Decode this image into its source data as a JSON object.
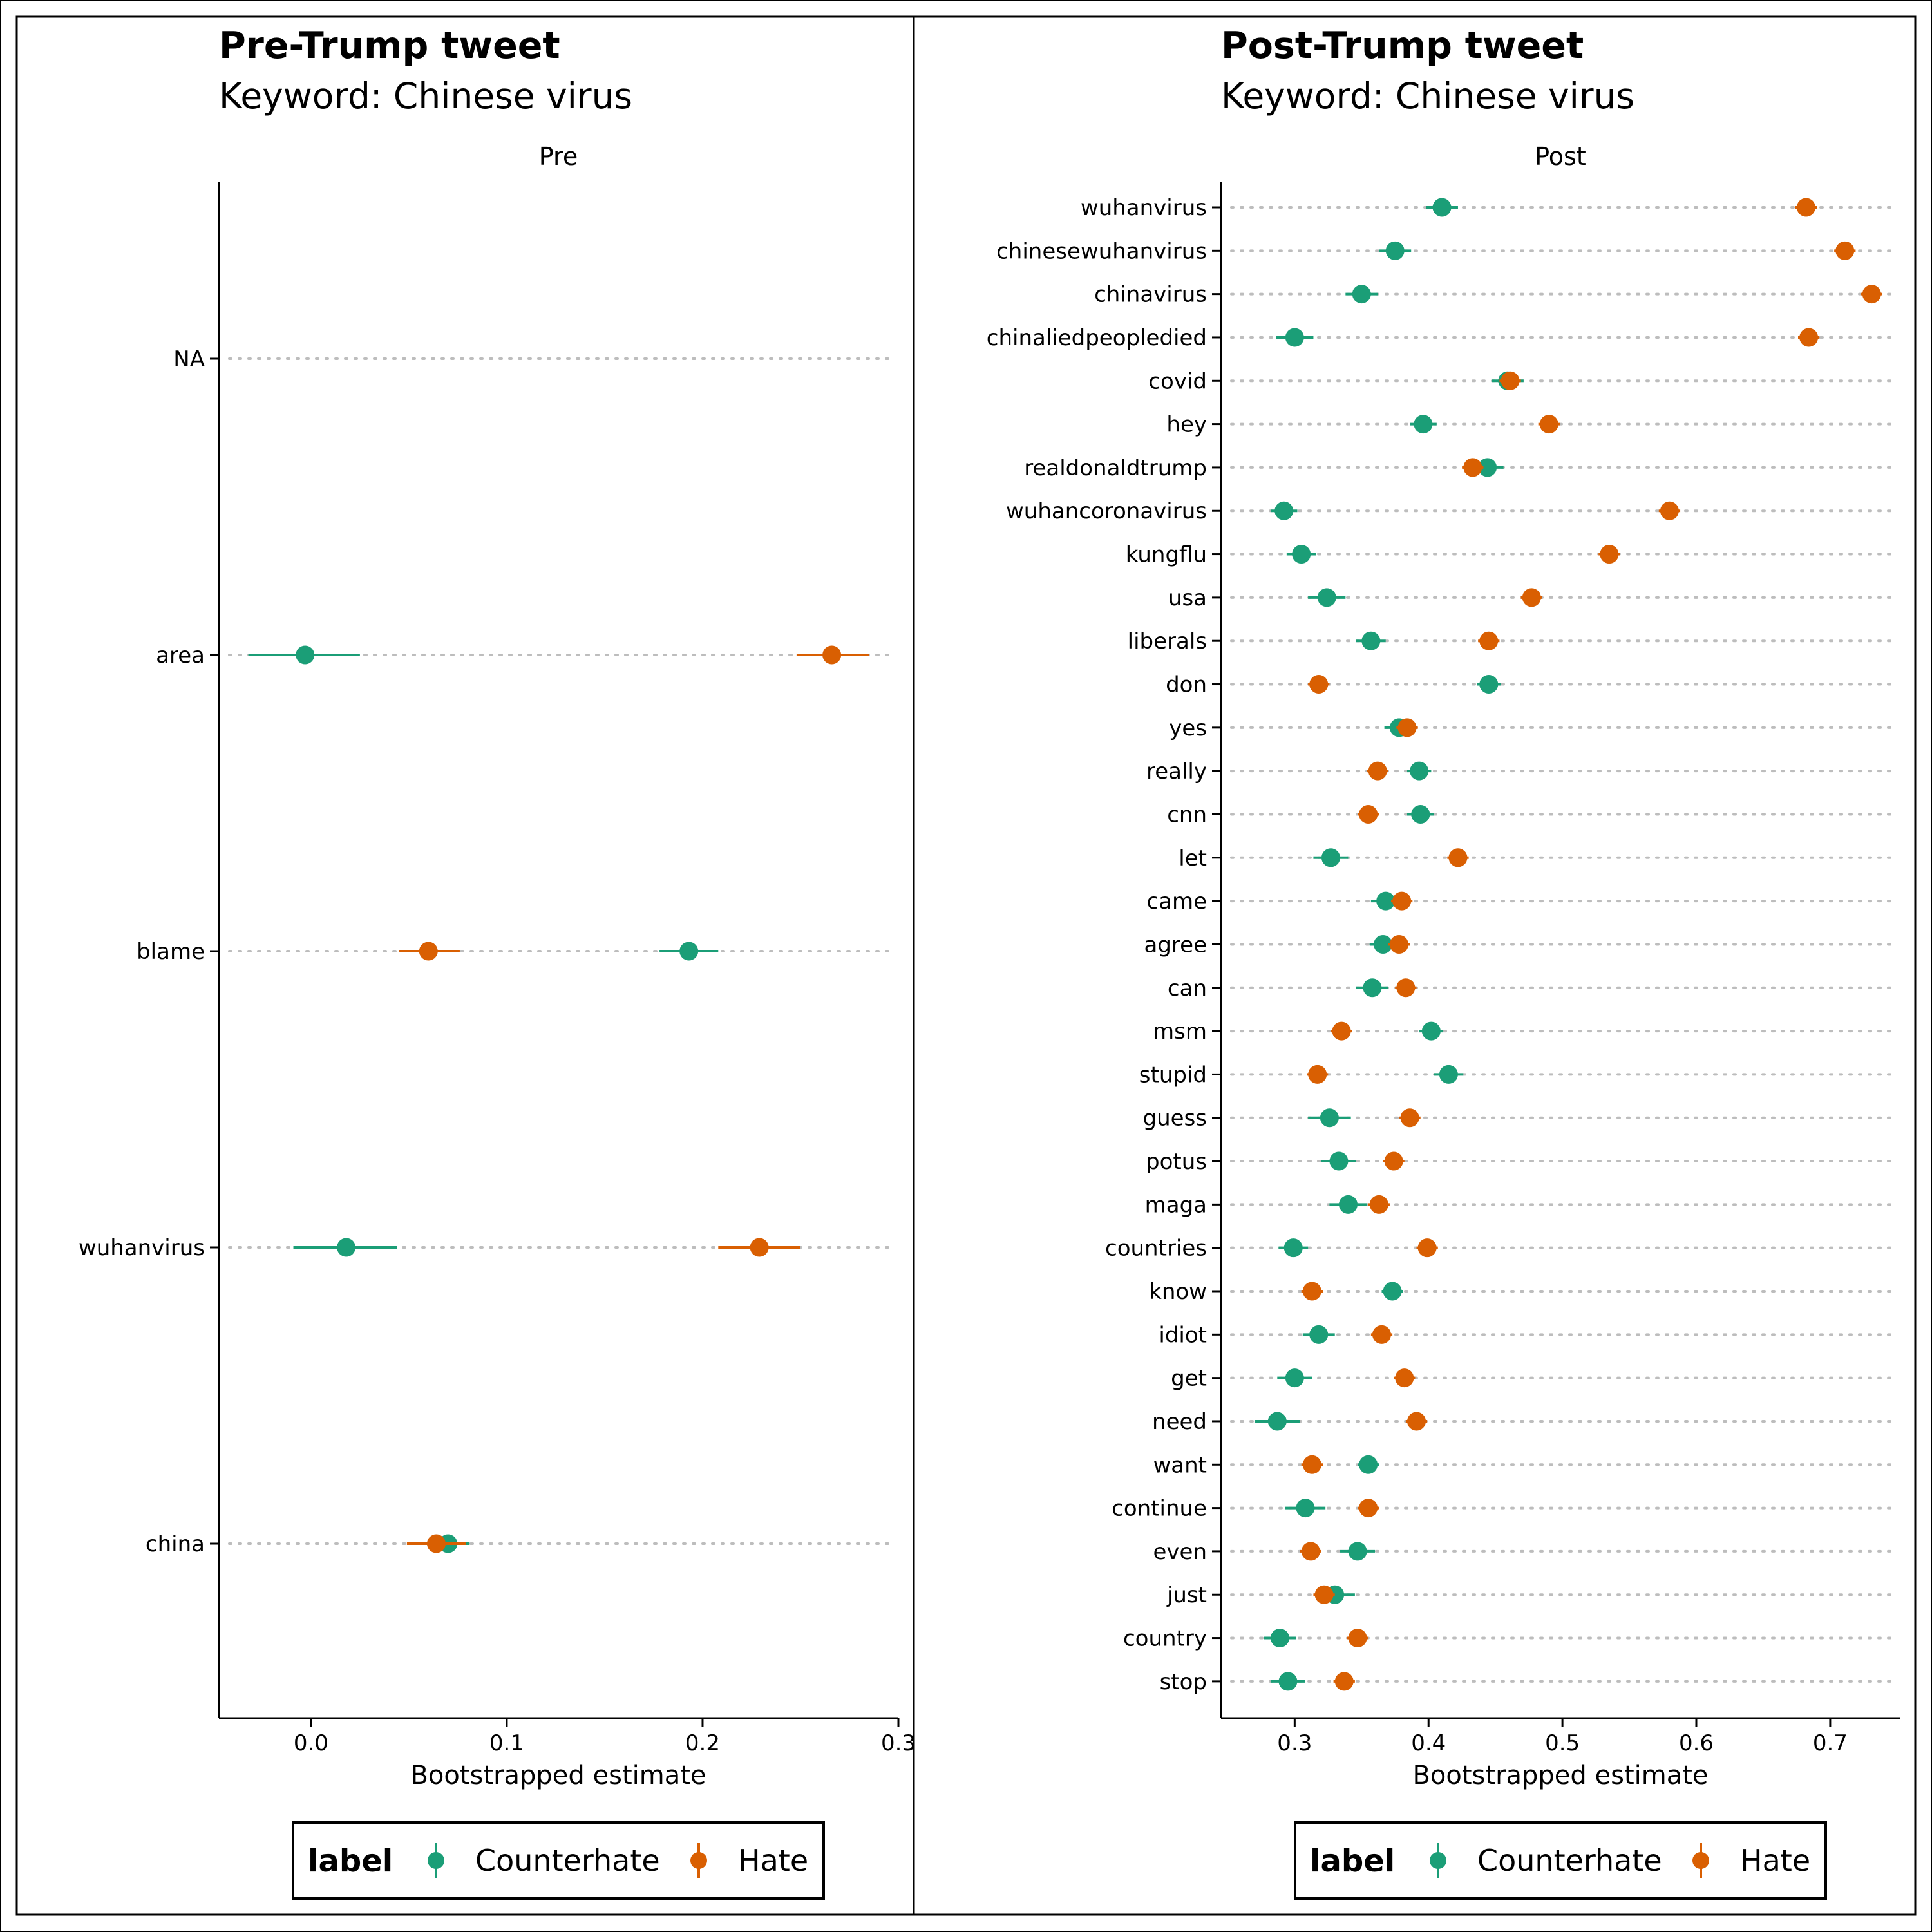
{
  "colors": {
    "Counterhate": "#1b9e77",
    "Hate": "#d95f02",
    "gridline": "#bdbdbd",
    "axis": "#000000"
  },
  "chart_data": [
    {
      "type": "scatter",
      "variant": "dot-plot-with-error-bars",
      "title": "Pre-Trump tweet",
      "subtitle": "Keyword: Chinese virus",
      "facet": "Pre",
      "xlabel": "Bootstrapped estimate",
      "ylabel": "",
      "xlim": [
        -0.047,
        0.3
      ],
      "xticks": [
        0.0,
        0.1,
        0.2,
        0.3
      ],
      "xtick_labels": [
        "0.0",
        "0.1",
        "0.2",
        "0.3"
      ],
      "categories": [
        "NA",
        "area",
        "blame",
        "wuhanvirus",
        "china"
      ],
      "series": [
        {
          "name": "Counterhate",
          "values": [
            null,
            -0.003,
            0.193,
            0.018,
            0.07
          ],
          "ci_low": [
            null,
            -0.032,
            0.178,
            -0.009,
            0.059
          ],
          "ci_high": [
            null,
            0.025,
            0.208,
            0.044,
            0.081
          ]
        },
        {
          "name": "Hate",
          "values": [
            null,
            0.266,
            0.06,
            0.229,
            0.064
          ],
          "ci_low": [
            null,
            0.248,
            0.045,
            0.208,
            0.049
          ],
          "ci_high": [
            null,
            0.285,
            0.076,
            0.25,
            0.079
          ]
        }
      ],
      "grid": "horizontal-dotted",
      "legend": {
        "title": "label",
        "entries": [
          "Counterhate",
          "Hate"
        ],
        "position": "bottom"
      }
    },
    {
      "type": "scatter",
      "variant": "dot-plot-with-error-bars",
      "title": "Post-Trump tweet",
      "subtitle": "Keyword: Chinese virus",
      "facet": "Post",
      "xlabel": "Bootstrapped estimate",
      "ylabel": "",
      "xlim": [
        0.245,
        0.752
      ],
      "xticks": [
        0.3,
        0.4,
        0.5,
        0.6,
        0.7
      ],
      "xtick_labels": [
        "0.3",
        "0.4",
        "0.5",
        "0.6",
        "0.7"
      ],
      "categories": [
        "wuhanvirus",
        "chinesewuhanvirus",
        "chinavirus",
        "chinaliedpeopledied",
        "covid",
        "hey",
        "realdonaldtrump",
        "wuhancoronavirus",
        "kungflu",
        "usa",
        "liberals",
        "don",
        "yes",
        "really",
        "cnn",
        "let",
        "came",
        "agree",
        "can",
        "msm",
        "stupid",
        "guess",
        "potus",
        "maga",
        "countries",
        "know",
        "idiot",
        "get",
        "need",
        "want",
        "continue",
        "even",
        "just",
        "country",
        "stop"
      ],
      "series": [
        {
          "name": "Counterhate",
          "values": [
            0.41,
            0.375,
            0.35,
            0.3,
            0.459,
            0.396,
            0.444,
            0.292,
            0.305,
            0.324,
            0.357,
            0.445,
            0.378,
            0.393,
            0.394,
            0.327,
            0.368,
            0.366,
            0.358,
            0.402,
            0.415,
            0.326,
            0.333,
            0.34,
            0.299,
            0.373,
            0.318,
            0.3,
            0.287,
            0.355,
            0.308,
            0.347,
            0.33,
            0.289,
            0.295
          ],
          "ci_low": [
            0.398,
            0.363,
            0.338,
            0.286,
            0.447,
            0.386,
            0.432,
            0.282,
            0.294,
            0.31,
            0.346,
            0.436,
            0.367,
            0.384,
            0.384,
            0.314,
            0.357,
            0.356,
            0.346,
            0.393,
            0.404,
            0.31,
            0.32,
            0.326,
            0.288,
            0.365,
            0.306,
            0.287,
            0.27,
            0.347,
            0.293,
            0.334,
            0.315,
            0.277,
            0.282
          ],
          "ci_high": [
            0.422,
            0.387,
            0.362,
            0.314,
            0.471,
            0.406,
            0.456,
            0.302,
            0.316,
            0.338,
            0.368,
            0.454,
            0.389,
            0.402,
            0.404,
            0.34,
            0.379,
            0.376,
            0.37,
            0.411,
            0.426,
            0.342,
            0.346,
            0.354,
            0.31,
            0.381,
            0.33,
            0.313,
            0.304,
            0.363,
            0.323,
            0.36,
            0.345,
            0.301,
            0.308
          ]
        },
        {
          "name": "Hate",
          "values": [
            0.682,
            0.711,
            0.731,
            0.684,
            0.461,
            0.49,
            0.433,
            0.58,
            0.535,
            0.477,
            0.445,
            0.318,
            0.384,
            0.362,
            0.355,
            0.422,
            0.38,
            0.378,
            0.383,
            0.335,
            0.317,
            0.386,
            0.374,
            0.363,
            0.399,
            0.313,
            0.365,
            0.382,
            0.391,
            0.313,
            0.355,
            0.312,
            0.322,
            0.347,
            0.337
          ],
          "ci_low": [
            0.674,
            0.703,
            0.723,
            0.676,
            0.453,
            0.482,
            0.425,
            0.572,
            0.527,
            0.469,
            0.437,
            0.31,
            0.376,
            0.354,
            0.347,
            0.414,
            0.372,
            0.37,
            0.375,
            0.327,
            0.309,
            0.378,
            0.366,
            0.355,
            0.391,
            0.305,
            0.357,
            0.374,
            0.383,
            0.305,
            0.347,
            0.304,
            0.314,
            0.339,
            0.329
          ],
          "ci_high": [
            0.69,
            0.719,
            0.739,
            0.692,
            0.469,
            0.498,
            0.441,
            0.588,
            0.543,
            0.485,
            0.453,
            0.326,
            0.392,
            0.37,
            0.363,
            0.43,
            0.388,
            0.386,
            0.391,
            0.343,
            0.325,
            0.394,
            0.382,
            0.371,
            0.407,
            0.321,
            0.373,
            0.39,
            0.399,
            0.321,
            0.363,
            0.32,
            0.33,
            0.355,
            0.345
          ]
        }
      ],
      "grid": "horizontal-dotted",
      "legend": {
        "title": "label",
        "entries": [
          "Counterhate",
          "Hate"
        ],
        "position": "bottom"
      }
    }
  ]
}
